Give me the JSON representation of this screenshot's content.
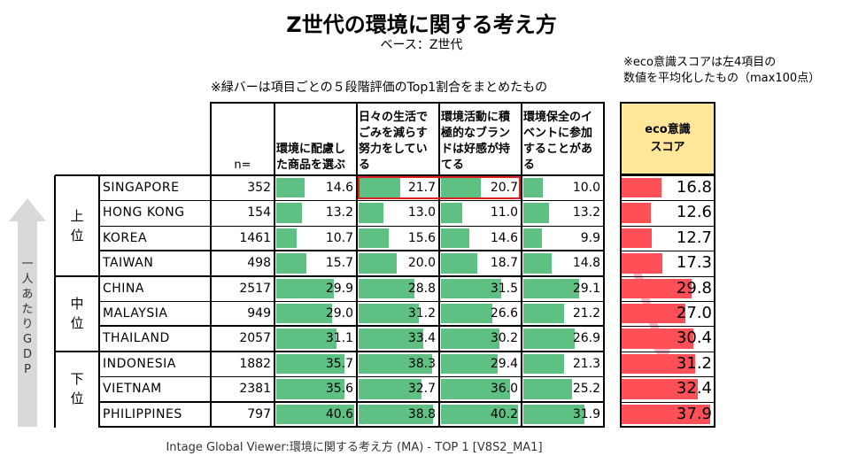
{
  "title": "Z世代の環境に関する考え方",
  "subtitle": "ベース：Z世代",
  "note_left": "※緑バーは項目ごとの５段階評価のTop1割合をまとめたもの",
  "note_right": [
    "※eco意識スコアは左4項目の",
    "数値を平均化したもの（max100点）"
  ],
  "source": "Intage Global Viewer:環境に関する考え方 (MA) - TOP 1 [V8S2_MA1]",
  "gdp_axis_label": "一人あたりGDP",
  "colors": {
    "green_bar": "#5ec083",
    "score_bar": "#ff5058",
    "score_header": "#ffe699",
    "highlight_box": "#e02020",
    "gdp_arrow": "#d9d9d9",
    "trend_arrow": "#f4b6c2"
  },
  "chart_data": {
    "type": "table",
    "n_label": "n=",
    "columns": [
      "環境に配慮した商品を選ぶ",
      "日々の生活でごみを減らす努力をしている",
      "環境活動に積極的なブランドは好感が持てる",
      "環境保全のイベントに参加することがある"
    ],
    "score_header": [
      "eco意識",
      "スコア"
    ],
    "groups": [
      {
        "label": "上位",
        "rows": 4
      },
      {
        "label": "中位",
        "rows": 3
      },
      {
        "label": "下位",
        "rows": 3
      }
    ],
    "highlight": {
      "row": "SINGAPORE",
      "columns": [
        1,
        2
      ]
    },
    "rows": [
      {
        "country": "SINGAPORE",
        "n": 352,
        "values": [
          14.6,
          21.7,
          20.7,
          10.0
        ],
        "score": 16.8
      },
      {
        "country": "HONG KONG",
        "n": 154,
        "values": [
          13.2,
          13.0,
          11.0,
          13.2
        ],
        "score": 12.6
      },
      {
        "country": "KOREA",
        "n": 1461,
        "values": [
          10.7,
          15.6,
          14.6,
          9.9
        ],
        "score": 12.7
      },
      {
        "country": "TAIWAN",
        "n": 498,
        "values": [
          15.7,
          20.0,
          18.7,
          14.8
        ],
        "score": 17.3
      },
      {
        "country": "CHINA",
        "n": 2517,
        "values": [
          29.9,
          28.8,
          31.5,
          29.1
        ],
        "score": 29.8
      },
      {
        "country": "MALAYSIA",
        "n": 949,
        "values": [
          29.0,
          31.2,
          26.6,
          21.2
        ],
        "score": 27.0
      },
      {
        "country": "THAILAND",
        "n": 2057,
        "values": [
          31.1,
          33.4,
          30.2,
          26.9
        ],
        "score": 30.4
      },
      {
        "country": "INDONESIA",
        "n": 1882,
        "values": [
          35.7,
          38.3,
          29.4,
          21.3
        ],
        "score": 31.2
      },
      {
        "country": "VIETNAM",
        "n": 2381,
        "values": [
          35.6,
          32.7,
          36.0,
          25.2
        ],
        "score": 32.4
      },
      {
        "country": "PHILIPPINES",
        "n": 797,
        "values": [
          40.6,
          38.8,
          40.2,
          31.9
        ],
        "score": 37.9
      }
    ]
  }
}
